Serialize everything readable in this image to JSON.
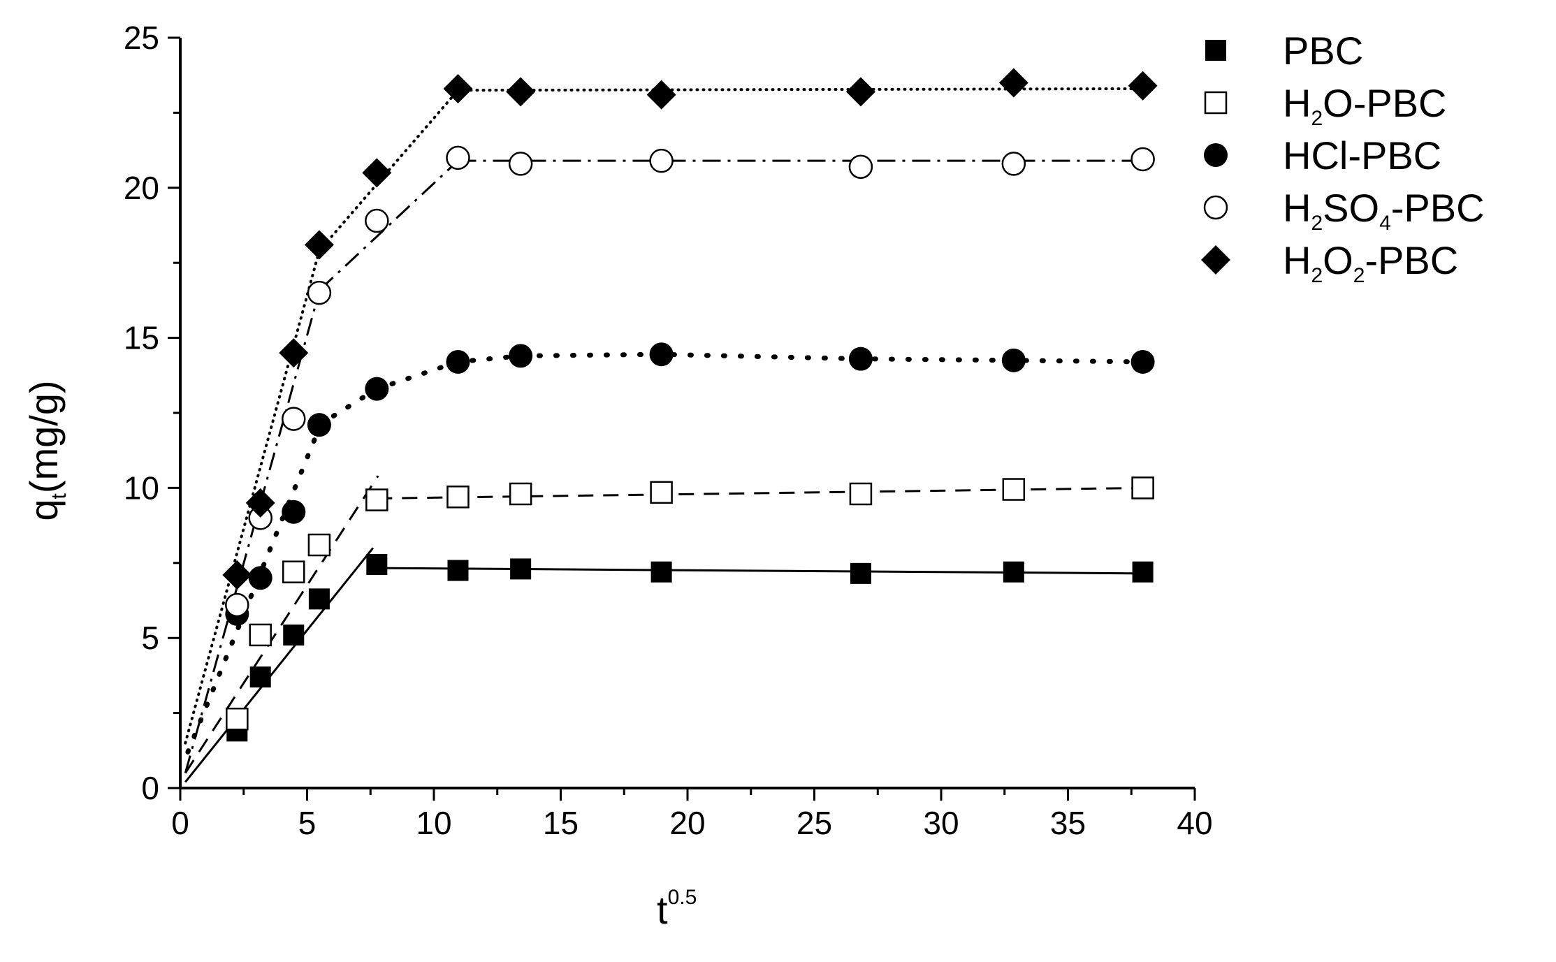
{
  "chart_data": {
    "type": "scatter",
    "title": "",
    "xlabel": {
      "base": "t",
      "sup": "0.5"
    },
    "ylabel": {
      "base": "q",
      "sub": "t",
      "rest": "(mg/g)"
    },
    "xlim": [
      0,
      40
    ],
    "ylim": [
      0,
      25
    ],
    "xticks": [
      "0",
      "5",
      "10",
      "15",
      "20",
      "25",
      "30",
      "35",
      "40"
    ],
    "yticks": [
      "0",
      "5",
      "10",
      "15",
      "20",
      "25"
    ],
    "grid": false,
    "legend_position": "right",
    "series": [
      {
        "name": "PBC",
        "legend_parts": [
          [
            "PBC",
            ""
          ]
        ],
        "marker": "square-filled",
        "x": [
          2.24,
          3.16,
          4.47,
          5.48,
          7.75,
          10.95,
          13.42,
          18.97,
          26.83,
          32.86,
          37.95
        ],
        "y": [
          1.9,
          3.7,
          5.1,
          6.3,
          7.45,
          7.25,
          7.3,
          7.2,
          7.15,
          7.2,
          7.2
        ],
        "fit_lines": [
          {
            "style": "solid",
            "x": [
              0.2,
              7.6
            ],
            "y": [
              0.2,
              8.0
            ]
          },
          {
            "style": "solid",
            "x": [
              7.75,
              37.95
            ],
            "y": [
              7.33,
              7.15
            ]
          }
        ]
      },
      {
        "name": "H2O-PBC",
        "legend_parts": [
          [
            "H",
            ""
          ],
          [
            "2",
            "sub"
          ],
          [
            "O-PBC",
            ""
          ]
        ],
        "marker": "square-open",
        "x": [
          2.24,
          3.16,
          4.47,
          5.48,
          7.75,
          10.95,
          13.42,
          18.97,
          26.83,
          32.86,
          37.95
        ],
        "y": [
          2.3,
          5.1,
          7.2,
          8.1,
          9.6,
          9.7,
          9.8,
          9.85,
          9.8,
          9.95,
          10.0
        ],
        "fit_lines": [
          {
            "style": "dashed",
            "x": [
              0.2,
              7.8
            ],
            "y": [
              0.5,
              10.4
            ]
          },
          {
            "style": "dashed",
            "x": [
              7.75,
              37.95
            ],
            "y": [
              9.65,
              10.0
            ]
          }
        ]
      },
      {
        "name": "HCl-PBC",
        "legend_parts": [
          [
            "HCl-PBC",
            ""
          ]
        ],
        "marker": "circle-filled",
        "x": [
          2.24,
          3.16,
          4.47,
          5.48,
          7.75,
          10.95,
          13.42,
          18.97,
          26.83,
          32.86,
          37.95
        ],
        "y": [
          5.8,
          7.0,
          9.2,
          12.1,
          13.3,
          14.2,
          14.4,
          14.45,
          14.3,
          14.25,
          14.2
        ],
        "fit_lines": [
          {
            "style": "dotted-heavy",
            "x": [
              0.3,
              5.48
            ],
            "y": [
              1.2,
              12.0
            ]
          },
          {
            "style": "dotted-heavy",
            "x": [
              5.48,
              7.75,
              10.95,
              13.42,
              18.97,
              26.83,
              32.86,
              37.95
            ],
            "y": [
              12.1,
              13.3,
              14.2,
              14.4,
              14.45,
              14.3,
              14.25,
              14.2
            ]
          }
        ]
      },
      {
        "name": "H2SO4-PBC",
        "legend_parts": [
          [
            "H",
            ""
          ],
          [
            "2",
            "sub"
          ],
          [
            "SO",
            ""
          ],
          [
            "4",
            "sub"
          ],
          [
            "-PBC",
            ""
          ]
        ],
        "marker": "circle-open",
        "x": [
          2.24,
          3.16,
          4.47,
          5.48,
          7.75,
          10.95,
          13.42,
          18.97,
          26.83,
          32.86,
          37.95
        ],
        "y": [
          6.1,
          9.0,
          12.3,
          16.5,
          18.9,
          21.0,
          20.8,
          20.9,
          20.7,
          20.8,
          20.95
        ],
        "fit_lines": [
          {
            "style": "dashdot",
            "x": [
              0.2,
              5.5
            ],
            "y": [
              0.5,
              16.6
            ]
          },
          {
            "style": "dashdot",
            "x": [
              5.5,
              10.95
            ],
            "y": [
              16.6,
              20.9
            ]
          },
          {
            "style": "dashdot",
            "x": [
              10.95,
              37.95
            ],
            "y": [
              20.9,
              20.9
            ]
          }
        ]
      },
      {
        "name": "H2O2-PBC",
        "legend_parts": [
          [
            "H",
            ""
          ],
          [
            "2",
            "sub"
          ],
          [
            "O",
            ""
          ],
          [
            "2",
            "sub"
          ],
          [
            "-PBC",
            ""
          ]
        ],
        "marker": "diamond-filled",
        "x": [
          2.24,
          3.16,
          4.47,
          5.48,
          7.75,
          10.95,
          13.42,
          18.97,
          26.83,
          32.86,
          37.95
        ],
        "y": [
          7.1,
          9.5,
          14.5,
          18.1,
          20.5,
          23.3,
          23.2,
          23.1,
          23.2,
          23.5,
          23.4
        ],
        "fit_lines": [
          {
            "style": "dotted-fine",
            "x": [
              0.2,
              5.48
            ],
            "y": [
              1.5,
              17.9
            ]
          },
          {
            "style": "dotted-fine",
            "x": [
              5.48,
              10.95
            ],
            "y": [
              17.9,
              23.25
            ]
          },
          {
            "style": "dotted-fine",
            "x": [
              10.95,
              37.95
            ],
            "y": [
              23.25,
              23.3
            ]
          }
        ]
      }
    ]
  }
}
